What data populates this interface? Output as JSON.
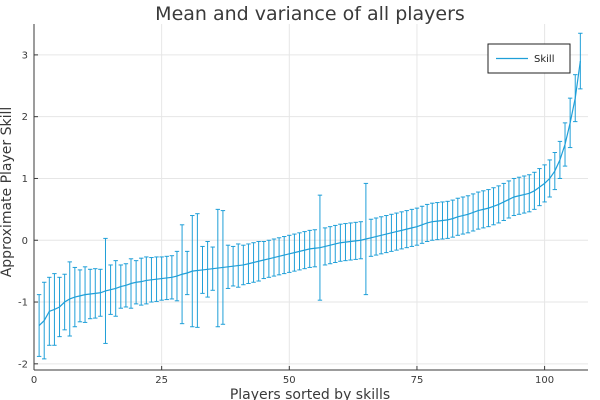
{
  "chart_data": {
    "type": "line",
    "title": "Mean and variance of all players",
    "xlabel": "Players sorted by skills",
    "ylabel": "Approximate Player Skill",
    "xlim": [
      0,
      108.5
    ],
    "ylim": [
      -2.1,
      3.5
    ],
    "xticks": [
      0,
      25,
      50,
      75,
      100
    ],
    "yticks": [
      -2,
      -1,
      0,
      1,
      2,
      3
    ],
    "grid": true,
    "legend_position": "top-right",
    "series": [
      {
        "name": "Skill",
        "color": "#1f9fd8",
        "x": [
          1,
          2,
          3,
          4,
          5,
          6,
          7,
          8,
          9,
          10,
          11,
          12,
          13,
          14,
          15,
          16,
          17,
          18,
          19,
          20,
          21,
          22,
          23,
          24,
          25,
          26,
          27,
          28,
          29,
          30,
          31,
          32,
          33,
          34,
          35,
          36,
          37,
          38,
          39,
          40,
          41,
          42,
          43,
          44,
          45,
          46,
          47,
          48,
          49,
          50,
          51,
          52,
          53,
          54,
          55,
          56,
          57,
          58,
          59,
          60,
          61,
          62,
          63,
          64,
          65,
          66,
          67,
          68,
          69,
          70,
          71,
          72,
          73,
          74,
          75,
          76,
          77,
          78,
          79,
          80,
          81,
          82,
          83,
          84,
          85,
          86,
          87,
          88,
          89,
          90,
          91,
          92,
          93,
          94,
          95,
          96,
          97,
          98,
          99,
          100,
          101,
          102,
          103,
          104,
          105,
          106,
          107
        ],
        "mean": [
          -1.38,
          -1.3,
          -1.15,
          -1.12,
          -1.08,
          -1.0,
          -0.95,
          -0.92,
          -0.9,
          -0.88,
          -0.87,
          -0.86,
          -0.85,
          -0.82,
          -0.8,
          -0.78,
          -0.75,
          -0.73,
          -0.7,
          -0.68,
          -0.67,
          -0.65,
          -0.64,
          -0.63,
          -0.62,
          -0.61,
          -0.6,
          -0.58,
          -0.55,
          -0.53,
          -0.5,
          -0.49,
          -0.48,
          -0.47,
          -0.46,
          -0.45,
          -0.44,
          -0.43,
          -0.42,
          -0.41,
          -0.4,
          -0.38,
          -0.36,
          -0.34,
          -0.32,
          -0.3,
          -0.28,
          -0.26,
          -0.24,
          -0.22,
          -0.2,
          -0.18,
          -0.16,
          -0.14,
          -0.13,
          -0.12,
          -0.1,
          -0.08,
          -0.06,
          -0.04,
          -0.03,
          -0.02,
          -0.01,
          0.0,
          0.02,
          0.04,
          0.06,
          0.08,
          0.1,
          0.12,
          0.14,
          0.16,
          0.18,
          0.2,
          0.22,
          0.25,
          0.28,
          0.3,
          0.31,
          0.32,
          0.33,
          0.35,
          0.38,
          0.4,
          0.42,
          0.45,
          0.48,
          0.5,
          0.52,
          0.55,
          0.58,
          0.62,
          0.66,
          0.7,
          0.72,
          0.74,
          0.76,
          0.8,
          0.86,
          0.92,
          1.0,
          1.12,
          1.3,
          1.55,
          1.9,
          2.3,
          2.9
        ],
        "error": [
          0.5,
          0.62,
          0.55,
          0.58,
          0.48,
          0.45,
          0.6,
          0.48,
          0.42,
          0.45,
          0.4,
          0.4,
          0.38,
          0.85,
          0.4,
          0.45,
          0.35,
          0.35,
          0.4,
          0.35,
          0.38,
          0.38,
          0.36,
          0.36,
          0.35,
          0.35,
          0.35,
          0.4,
          0.8,
          0.35,
          0.9,
          0.92,
          0.38,
          0.45,
          0.35,
          0.95,
          0.92,
          0.35,
          0.32,
          0.35,
          0.32,
          0.32,
          0.32,
          0.32,
          0.3,
          0.3,
          0.3,
          0.3,
          0.3,
          0.3,
          0.3,
          0.3,
          0.3,
          0.3,
          0.3,
          0.85,
          0.3,
          0.3,
          0.3,
          0.3,
          0.3,
          0.3,
          0.3,
          0.3,
          0.9,
          0.3,
          0.3,
          0.3,
          0.3,
          0.3,
          0.3,
          0.3,
          0.3,
          0.3,
          0.3,
          0.3,
          0.3,
          0.3,
          0.3,
          0.3,
          0.3,
          0.3,
          0.3,
          0.3,
          0.3,
          0.3,
          0.3,
          0.3,
          0.3,
          0.3,
          0.3,
          0.3,
          0.3,
          0.3,
          0.3,
          0.3,
          0.3,
          0.3,
          0.3,
          0.3,
          0.3,
          0.3,
          0.3,
          0.35,
          0.4,
          0.38,
          0.45
        ]
      }
    ]
  }
}
